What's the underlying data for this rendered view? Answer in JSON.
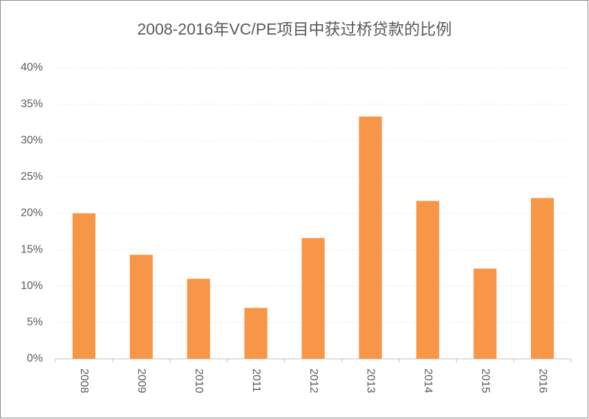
{
  "chart_data": {
    "type": "bar",
    "title": "2008-2016年VC/PE项目中获过桥贷款的比例",
    "categories": [
      "2008",
      "2009",
      "2010",
      "2011",
      "2012",
      "2013",
      "2014",
      "2015",
      "2016"
    ],
    "values": [
      20.0,
      14.3,
      11.0,
      7.0,
      16.6,
      33.3,
      21.7,
      12.4,
      22.1
    ],
    "color": "#f79646",
    "ylim": [
      0,
      40
    ],
    "yticks": [
      {
        "value": 0,
        "label": "0%"
      },
      {
        "value": 5,
        "label": "5%"
      },
      {
        "value": 10,
        "label": "10%"
      },
      {
        "value": 15,
        "label": "15%"
      },
      {
        "value": 20,
        "label": "20%"
      },
      {
        "value": 25,
        "label": "25%"
      },
      {
        "value": 30,
        "label": "30%"
      },
      {
        "value": 35,
        "label": "35%"
      },
      {
        "value": 40,
        "label": "40%"
      }
    ],
    "grid": true
  }
}
